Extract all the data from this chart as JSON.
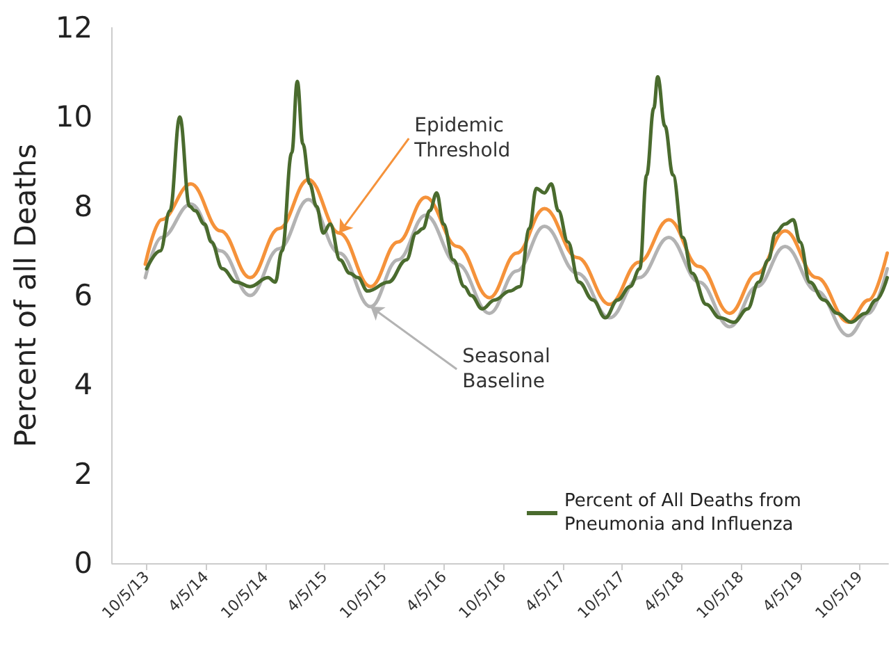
{
  "chart_data": {
    "type": "line",
    "ylabel": "Percent of all Deaths",
    "xlim": [
      "2013-06-21",
      "2019-12-31"
    ],
    "xticks": [
      {
        "value": "2013-10-05",
        "label": "10/5/13"
      },
      {
        "value": "2014-04-05",
        "label": "4/5/14"
      },
      {
        "value": "2014-10-05",
        "label": "10/5/14"
      },
      {
        "value": "2015-04-05",
        "label": "4/5/15"
      },
      {
        "value": "2015-10-05",
        "label": "10/5/15"
      },
      {
        "value": "2016-04-05",
        "label": "4/5/16"
      },
      {
        "value": "2016-10-05",
        "label": "10/5/16"
      },
      {
        "value": "2017-04-05",
        "label": "4/5/17"
      },
      {
        "value": "2017-10-05",
        "label": "10/5/17"
      },
      {
        "value": "2018-04-05",
        "label": "4/5/18"
      },
      {
        "value": "2018-10-05",
        "label": "10/5/18"
      },
      {
        "value": "2019-04-05",
        "label": "4/5/19"
      },
      {
        "value": "2019-10-05",
        "label": "10/5/19"
      }
    ],
    "ylim": [
      0,
      12
    ],
    "yticks": [
      0,
      2,
      4,
      6,
      8,
      10,
      12
    ],
    "grid": false,
    "legend": "bottom right",
    "marker": "none",
    "line_style": "solid",
    "series": [
      {
        "name": "Percent of All Deaths from Pneumonia and Influenza",
        "color": "#4a6b2e",
        "x": [
          "2013-10-05",
          "2013-11-16",
          "2013-12-16",
          "2014-01-15",
          "2014-02-14",
          "2014-03-03",
          "2014-04-01",
          "2014-04-22",
          "2014-05-26",
          "2014-07-08",
          "2014-08-19",
          "2014-10-13",
          "2014-11-04",
          "2014-11-25",
          "2014-12-25",
          "2015-01-11",
          "2015-01-28",
          "2015-02-18",
          "2015-03-11",
          "2015-04-01",
          "2015-04-22",
          "2015-05-22",
          "2015-06-21",
          "2015-07-16",
          "2015-08-15",
          "2015-10-18",
          "2015-12-12",
          "2016-01-11",
          "2016-02-01",
          "2016-02-22",
          "2016-03-14",
          "2016-04-04",
          "2016-05-04",
          "2016-06-07",
          "2016-06-28",
          "2016-08-01",
          "2016-09-08",
          "2016-10-25",
          "2016-11-24",
          "2016-12-24",
          "2017-01-14",
          "2017-02-08",
          "2017-03-01",
          "2017-03-23",
          "2017-04-21",
          "2017-05-25",
          "2017-07-07",
          "2017-08-14",
          "2017-09-21",
          "2017-10-29",
          "2017-11-28",
          "2017-12-19",
          "2018-01-10",
          "2018-01-22",
          "2018-02-13",
          "2018-03-10",
          "2018-04-09",
          "2018-05-08",
          "2018-06-20",
          "2018-08-01",
          "2018-09-13",
          "2018-10-25",
          "2018-11-28",
          "2018-12-28",
          "2019-01-18",
          "2019-02-17",
          "2019-03-14",
          "2019-04-04",
          "2019-05-04",
          "2019-06-16",
          "2019-07-28",
          "2019-09-08",
          "2019-10-21",
          "2019-11-24",
          "2019-12-28"
        ],
        "values": [
          6.6,
          7.0,
          7.9,
          10.0,
          8.0,
          7.9,
          7.6,
          7.2,
          6.6,
          6.3,
          6.2,
          6.4,
          6.3,
          7.0,
          9.2,
          10.8,
          9.4,
          8.5,
          8.0,
          7.4,
          7.6,
          6.8,
          6.5,
          6.4,
          6.1,
          6.3,
          6.8,
          7.4,
          7.5,
          7.9,
          8.3,
          7.6,
          6.8,
          6.2,
          6.0,
          5.7,
          5.9,
          6.1,
          6.2,
          7.5,
          8.4,
          8.3,
          8.5,
          7.9,
          7.2,
          6.3,
          5.9,
          5.5,
          5.9,
          6.2,
          6.6,
          8.7,
          10.2,
          10.9,
          9.8,
          8.7,
          7.3,
          6.5,
          5.8,
          5.5,
          5.4,
          5.7,
          6.3,
          6.8,
          7.4,
          7.6,
          7.7,
          7.2,
          6.3,
          5.9,
          5.6,
          5.4,
          5.6,
          5.9,
          6.4
        ]
      },
      {
        "color": "#f5923a",
        "x": [
          "2013-10-01",
          "2013-11-20",
          "2014-02-18",
          "2014-05-20",
          "2014-08-19",
          "2014-11-16",
          "2015-02-14",
          "2015-05-20",
          "2015-08-24",
          "2015-11-16",
          "2016-02-09",
          "2016-05-17",
          "2016-08-23",
          "2016-11-15",
          "2017-02-08",
          "2017-05-20",
          "2017-08-27",
          "2017-11-26",
          "2018-02-25",
          "2018-05-29",
          "2018-08-31",
          "2018-11-23",
          "2019-02-17",
          "2019-05-25",
          "2019-08-31",
          "2019-11-01",
          "2019-12-28"
        ],
        "values": [
          6.7,
          7.7,
          8.5,
          7.45,
          6.4,
          7.5,
          8.6,
          7.4,
          6.2,
          7.2,
          8.2,
          7.1,
          5.95,
          6.95,
          7.95,
          6.85,
          5.8,
          6.75,
          7.7,
          6.65,
          5.6,
          6.5,
          7.45,
          6.4,
          5.4,
          5.9,
          6.95
        ]
      },
      {
        "color": "#b3b3b3",
        "x": [
          "2013-10-01",
          "2013-11-20",
          "2014-02-18",
          "2014-05-20",
          "2014-08-19",
          "2014-11-16",
          "2015-02-14",
          "2015-05-20",
          "2015-08-24",
          "2015-11-16",
          "2016-02-09",
          "2016-05-17",
          "2016-08-23",
          "2016-11-15",
          "2017-02-08",
          "2017-05-20",
          "2017-08-27",
          "2017-11-26",
          "2018-02-25",
          "2018-05-29",
          "2018-08-31",
          "2018-11-23",
          "2019-02-17",
          "2019-05-25",
          "2019-08-31",
          "2019-11-01",
          "2019-12-28"
        ],
        "values": [
          6.4,
          7.3,
          8.05,
          7.0,
          6.0,
          7.05,
          8.15,
          6.95,
          5.75,
          6.8,
          7.8,
          6.7,
          5.6,
          6.55,
          7.55,
          6.5,
          5.5,
          6.4,
          7.3,
          6.3,
          5.3,
          6.2,
          7.1,
          6.1,
          5.1,
          5.6,
          6.6
        ]
      }
    ],
    "annotations": [
      {
        "text": "Epidemic Threshold",
        "x": "2015-05-20",
        "y": 7.4
      },
      {
        "text": "Seasonal Baseline",
        "x": "2015-08-24",
        "y": 5.75
      }
    ]
  }
}
